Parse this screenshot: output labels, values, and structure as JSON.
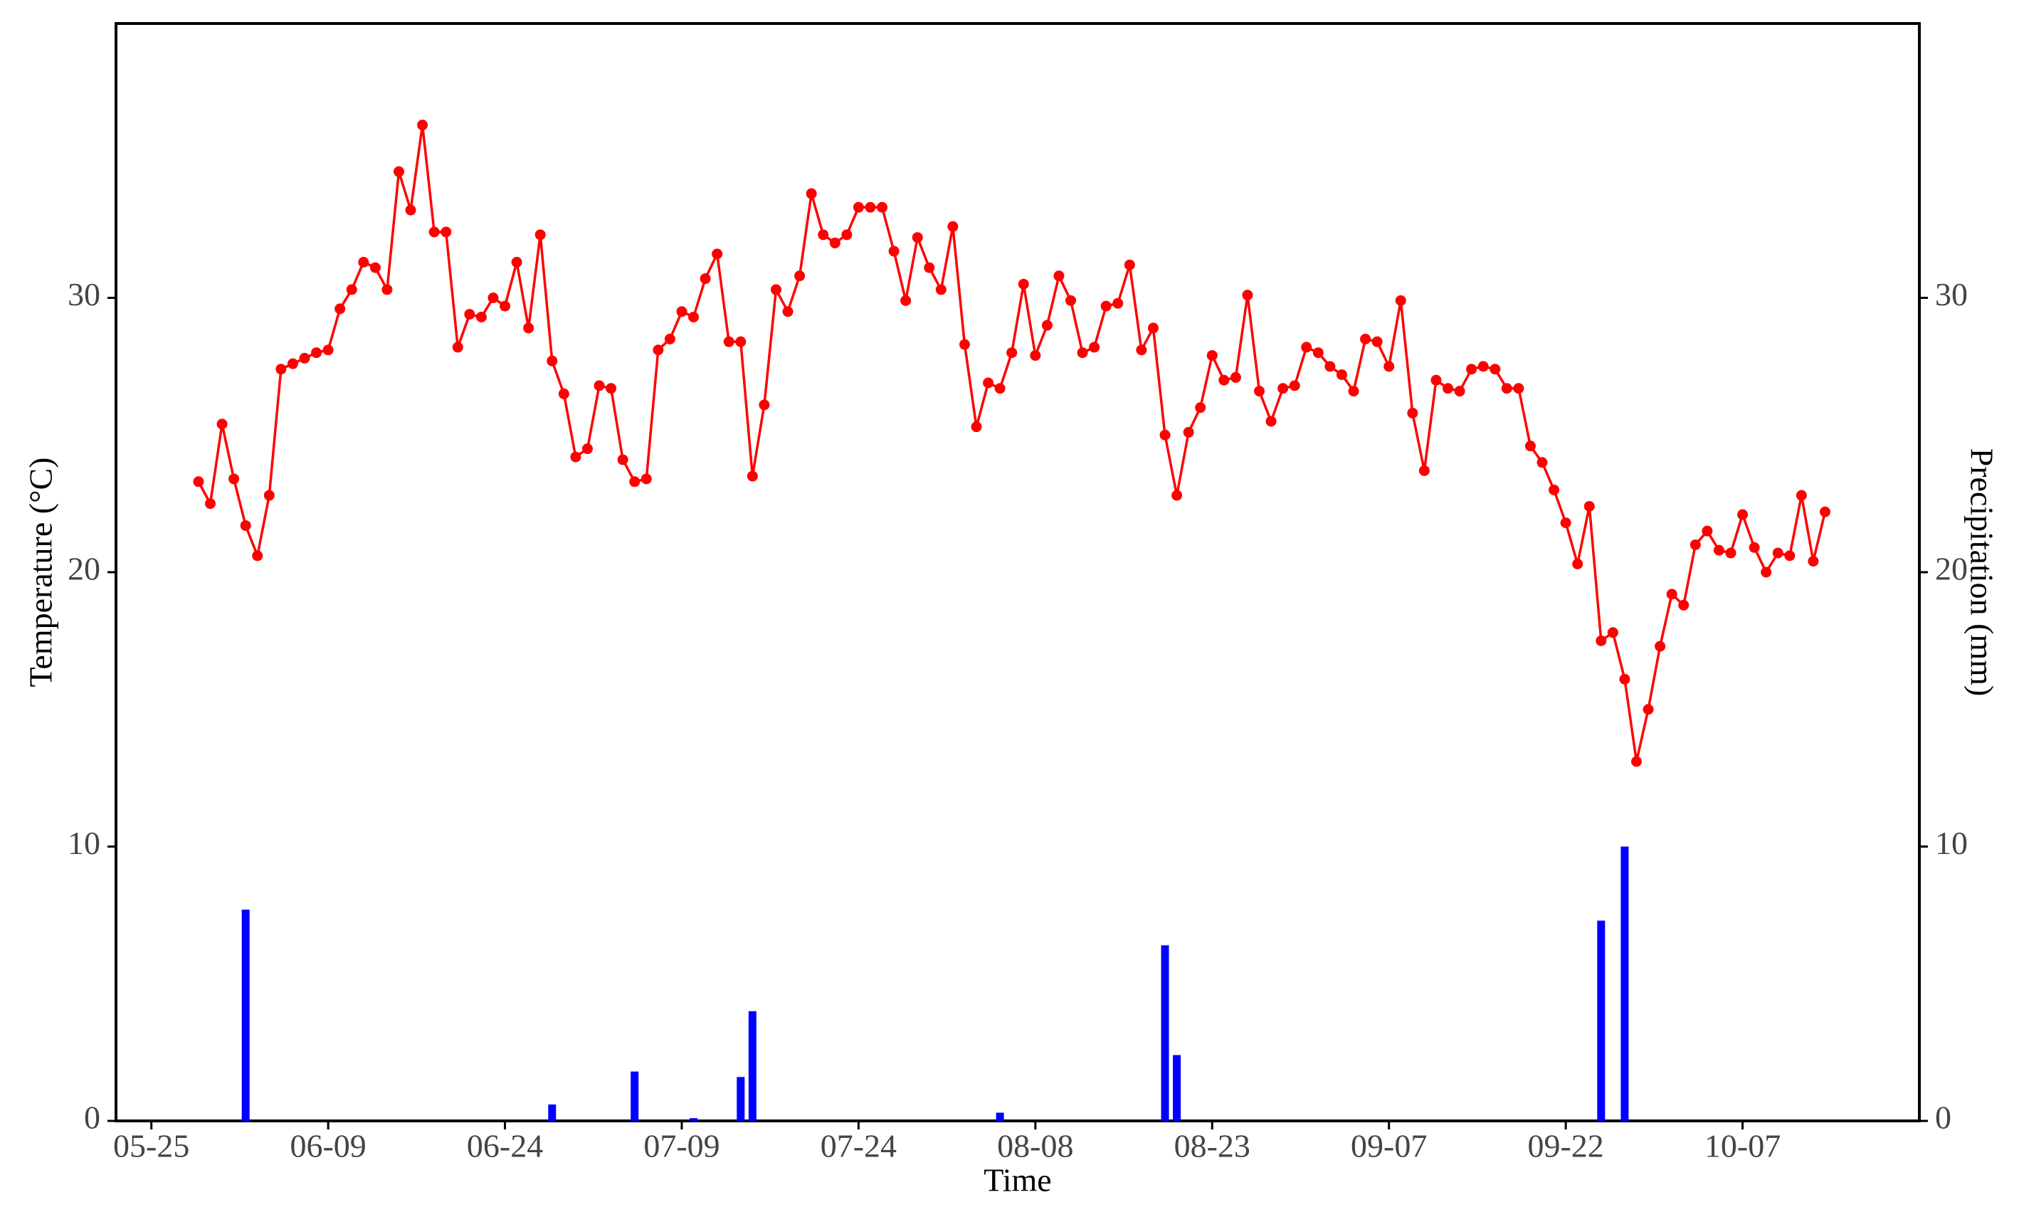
{
  "chart_data": {
    "type": "line",
    "xlabel": "Time",
    "ylabel": "Temperature (°C)",
    "y2label": "Precipitation (mm)",
    "x": [
      "05-29",
      "05-30",
      "05-31",
      "06-01",
      "06-02",
      "06-03",
      "06-04",
      "06-05",
      "06-06",
      "06-07",
      "06-08",
      "06-09",
      "06-10",
      "06-11",
      "06-12",
      "06-13",
      "06-14",
      "06-15",
      "06-16",
      "06-17",
      "06-18",
      "06-19",
      "06-20",
      "06-21",
      "06-22",
      "06-23",
      "06-24",
      "06-25",
      "06-26",
      "06-27",
      "06-28",
      "06-29",
      "06-30",
      "07-01",
      "07-02",
      "07-03",
      "07-04",
      "07-05",
      "07-06",
      "07-07",
      "07-08",
      "07-09",
      "07-10",
      "07-11",
      "07-12",
      "07-13",
      "07-14",
      "07-15",
      "07-16",
      "07-17",
      "07-18",
      "07-19",
      "07-20",
      "07-21",
      "07-22",
      "07-23",
      "07-24",
      "07-25",
      "07-26",
      "07-27",
      "07-28",
      "07-29",
      "07-30",
      "07-31",
      "08-01",
      "08-02",
      "08-03",
      "08-04",
      "08-05",
      "08-06",
      "08-07",
      "08-08",
      "08-09",
      "08-10",
      "08-11",
      "08-12",
      "08-13",
      "08-14",
      "08-15",
      "08-16",
      "08-17",
      "08-18",
      "08-19",
      "08-20",
      "08-21",
      "08-22",
      "08-23",
      "08-24",
      "08-25",
      "08-26",
      "08-27",
      "08-28",
      "08-29",
      "08-30",
      "08-31",
      "09-01",
      "09-02",
      "09-03",
      "09-04",
      "09-05",
      "09-06",
      "09-07",
      "09-08",
      "09-09",
      "09-10",
      "09-11",
      "09-12",
      "09-13",
      "09-14",
      "09-15",
      "09-16",
      "09-17",
      "09-18",
      "09-19",
      "09-20",
      "09-21",
      "09-22",
      "09-23",
      "09-24",
      "09-25",
      "09-26",
      "09-27",
      "09-28",
      "09-29",
      "09-30",
      "10-01",
      "10-02",
      "10-03",
      "10-04",
      "10-05",
      "10-06",
      "10-07",
      "10-08",
      "10-09",
      "10-10",
      "10-11",
      "10-12",
      "10-13",
      "10-14"
    ],
    "series": [
      {
        "color": "#ff0000",
        "markers": true,
        "values": [
          23.3,
          22.5,
          25.4,
          23.4,
          21.7,
          20.6,
          22.8,
          27.4,
          27.6,
          27.8,
          28.0,
          28.1,
          29.6,
          30.3,
          31.3,
          31.1,
          30.3,
          34.6,
          33.2,
          36.3,
          32.4,
          32.4,
          28.2,
          29.4,
          29.3,
          30.0,
          29.7,
          31.3,
          28.9,
          32.3,
          27.7,
          26.5,
          24.2,
          24.5,
          26.8,
          26.7,
          24.1,
          23.3,
          23.4,
          28.1,
          28.5,
          29.5,
          29.3,
          30.7,
          31.6,
          28.4,
          28.4,
          23.5,
          26.1,
          30.3,
          29.5,
          30.8,
          33.8,
          32.3,
          32.0,
          32.3,
          33.3,
          33.3,
          33.3,
          31.7,
          29.9,
          32.2,
          31.1,
          30.3,
          32.6,
          28.3,
          25.3,
          26.9,
          26.7,
          28.0,
          30.5,
          27.9,
          29.0,
          30.8,
          29.9,
          28.0,
          28.2,
          29.7,
          29.8,
          31.2,
          28.1,
          28.9,
          25.0,
          22.8,
          25.1,
          26.0,
          27.9,
          27.0,
          27.1,
          30.1,
          26.6,
          25.5,
          26.7,
          26.8,
          28.2,
          28.0,
          27.5,
          27.2,
          26.6,
          28.5,
          28.4,
          27.5,
          29.9,
          25.8,
          23.7,
          27.0,
          26.7,
          26.6,
          27.4,
          27.5,
          27.4,
          26.7,
          26.7,
          24.6,
          24.0,
          23.0,
          21.8,
          20.3,
          22.4,
          17.5,
          17.8,
          16.1,
          13.1,
          15.0,
          17.3,
          19.2,
          18.8,
          21.0,
          21.5,
          20.8,
          20.7,
          22.1,
          20.9,
          20.0,
          20.7,
          20.6,
          22.8,
          20.4,
          22.2
        ]
      },
      {
        "type": "bar",
        "axis": "y2",
        "color": "#0000ff",
        "x": [
          "06-02",
          "06-28",
          "07-05",
          "07-10",
          "07-14",
          "07-15",
          "08-05",
          "08-19",
          "08-20",
          "09-25",
          "09-27"
        ],
        "values": [
          7.7,
          0.6,
          1.8,
          0.1,
          1.6,
          4.0,
          0.3,
          6.4,
          2.4,
          7.3,
          10.0
        ]
      }
    ],
    "xlim": [
      "05-22",
      "10-22"
    ],
    "xticks": [
      "05-25",
      "06-09",
      "06-24",
      "07-09",
      "07-24",
      "08-08",
      "08-23",
      "09-07",
      "09-22",
      "10-07"
    ],
    "ylim": [
      0,
      40
    ],
    "yticks": [
      0,
      10,
      20,
      30
    ],
    "y2lim": [
      0,
      40
    ],
    "y2ticks": [
      0,
      10,
      20,
      30
    ]
  }
}
